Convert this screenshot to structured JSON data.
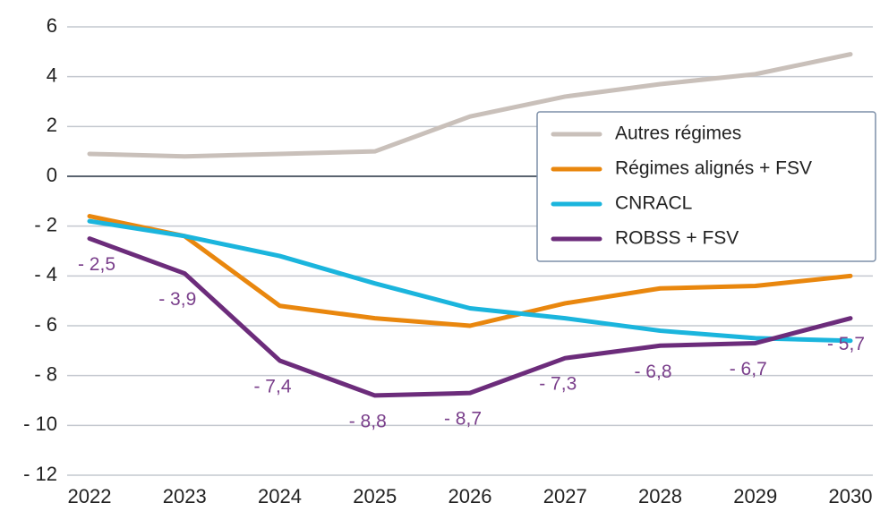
{
  "chart_data": {
    "type": "line",
    "categories": [
      "2022",
      "2023",
      "2024",
      "2025",
      "2026",
      "2027",
      "2028",
      "2029",
      "2030"
    ],
    "series": [
      {
        "name": "Autres régimes",
        "color": "#c9c0ba",
        "values": [
          0.9,
          0.8,
          0.9,
          1.0,
          2.4,
          3.2,
          3.7,
          4.1,
          4.9
        ]
      },
      {
        "name": "Régimes alignés + FSV",
        "color": "#e9870e",
        "values": [
          -1.6,
          -2.4,
          -5.2,
          -5.7,
          -6.0,
          -5.1,
          -4.5,
          -4.4,
          -4.0
        ]
      },
      {
        "name": "CNRACL",
        "color": "#1bb5dd",
        "values": [
          -1.8,
          -2.4,
          -3.2,
          -4.3,
          -5.3,
          -5.7,
          -6.2,
          -6.5,
          -6.6
        ]
      },
      {
        "name": "ROBSS + FSV",
        "color": "#6c2c7b",
        "values": [
          -2.5,
          -3.9,
          -7.4,
          -8.8,
          -8.7,
          -7.3,
          -6.8,
          -6.7,
          -5.7
        ],
        "value_labels": [
          "- 2,5",
          "- 3,9",
          "- 7,4",
          "- 8,8",
          "- 8,7",
          "- 7,3",
          "- 6,8",
          "- 6,7",
          "- 5,7"
        ]
      }
    ],
    "ylim": [
      -12,
      6
    ],
    "yticks": [
      {
        "value": -12,
        "label": "- 12"
      },
      {
        "value": -10,
        "label": "- 10"
      },
      {
        "value": -8,
        "label": "- 8"
      },
      {
        "value": -6,
        "label": "- 6"
      },
      {
        "value": -4,
        "label": "- 4"
      },
      {
        "value": -2,
        "label": "- 2"
      },
      0,
      2,
      4,
      6
    ],
    "grid": true,
    "legend": "upper right"
  }
}
